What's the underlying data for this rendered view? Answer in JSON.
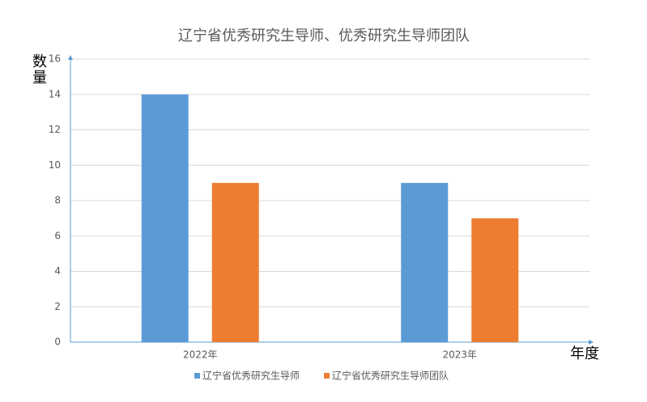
{
  "chart_data": {
    "type": "bar",
    "title": "辽宁省优秀研究生导师、优秀研究生导师团队",
    "y_label": "数量",
    "x_label": "年度",
    "categories": [
      "2022年",
      "2023年"
    ],
    "series": [
      {
        "name": "辽宁省优秀研究生导师",
        "color": "#5b9bd5",
        "values": [
          14,
          9
        ]
      },
      {
        "name": "辽宁省优秀研究生导师团队",
        "color": "#ed7d31",
        "values": [
          9,
          7
        ]
      }
    ],
    "ylim": [
      0,
      16
    ],
    "yticks": [
      0,
      2,
      4,
      6,
      8,
      10,
      12,
      14,
      16
    ],
    "grid": true,
    "legend": "bottom"
  }
}
